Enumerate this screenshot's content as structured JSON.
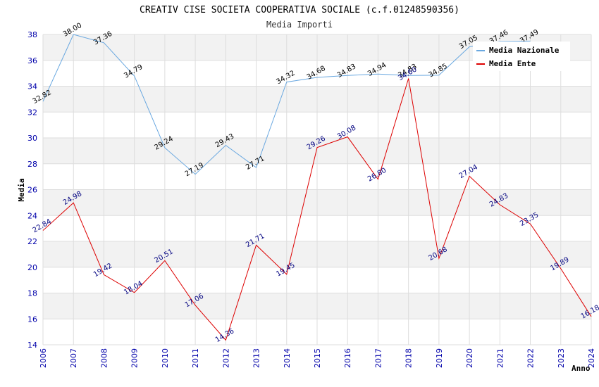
{
  "chart_data": {
    "type": "line",
    "title": "CREATIV CISE SOCIETA COOPERATIVA SOCIALE (c.f.01248590356)",
    "subtitle": "Media Importi",
    "xlabel": "Anno",
    "ylabel": "Media",
    "ylim": [
      14,
      38
    ],
    "yticks": [
      14,
      16,
      18,
      20,
      22,
      24,
      26,
      28,
      30,
      32,
      34,
      36,
      38
    ],
    "grid": true,
    "legend_position": "top-right",
    "categories": [
      "2006",
      "2007",
      "2008",
      "2009",
      "2010",
      "2011",
      "2012",
      "2013",
      "2014",
      "2015",
      "2016",
      "2017",
      "2018",
      "2019",
      "2020",
      "2021",
      "2022",
      "2023",
      "2024"
    ],
    "series": [
      {
        "name": "Media Nazionale",
        "color": "#6aa8e0",
        "values": [
          32.82,
          38.0,
          37.36,
          34.79,
          29.24,
          27.19,
          29.43,
          27.71,
          34.32,
          34.68,
          34.83,
          34.94,
          34.83,
          34.85,
          37.05,
          37.46,
          37.49,
          null,
          null
        ],
        "labels": [
          "32.82",
          "38.00",
          "37.36",
          "34.79",
          "29.24",
          "27.19",
          "29.43",
          "27.71",
          "34.32",
          "34.68",
          "34.83",
          "34.94",
          "34.83",
          "34.85",
          "37.05",
          "37.46",
          "37.49",
          "",
          ""
        ]
      },
      {
        "name": "Media Ente",
        "color": "#dd0000",
        "values": [
          22.84,
          24.98,
          19.42,
          18.04,
          20.51,
          17.06,
          14.36,
          21.71,
          19.45,
          29.26,
          30.08,
          26.8,
          34.6,
          20.68,
          27.04,
          24.83,
          23.35,
          19.89,
          16.18
        ],
        "labels": [
          "22.84",
          "24.98",
          "19.42",
          "18.04",
          "20.51",
          "17.06",
          "14.36",
          "21.71",
          "19.45",
          "29.26",
          "30.08",
          "26.80",
          "34.60",
          "20.68",
          "27.04",
          "24.83",
          "23.35",
          "19.89",
          "16.18"
        ]
      }
    ]
  }
}
